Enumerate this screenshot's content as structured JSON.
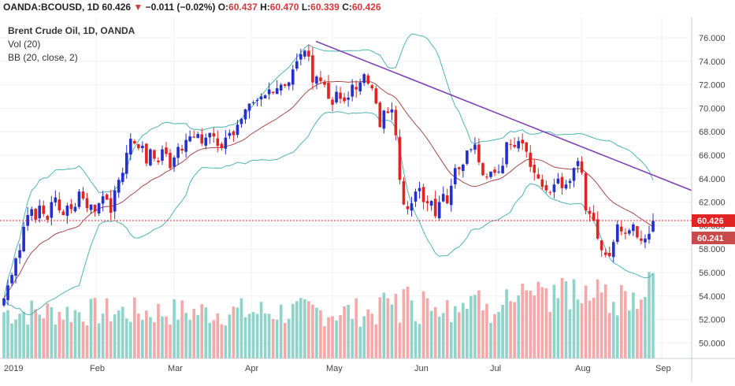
{
  "header": {
    "symbol": "OANDA:BCOUSD, 1D",
    "last": "60.426",
    "change_arrow": "▼",
    "change": "−0.011 (−0.02%)",
    "ohlc": [
      {
        "label": "O:",
        "value": "60.437"
      },
      {
        "label": "H:",
        "value": "60.470"
      },
      {
        "label": "L:",
        "value": "60.339"
      },
      {
        "label": "C:",
        "value": "60.426"
      }
    ]
  },
  "legend": {
    "title": "Brent Crude Oil, 1D, OANDA",
    "vol": "Vol (20)",
    "bb": "BB (20, close, 2)"
  },
  "colors": {
    "up": "#2430c9",
    "down": "#e02424",
    "trendline": "#7e3fb5",
    "bb_outer": "#4fb4b4",
    "bb_mid": "#a84848",
    "vol_up": "#8fd3cb",
    "vol_down": "#f4a8a8",
    "price_line": "#e02424",
    "bb_label": "#c94a4a"
  },
  "chart_data": {
    "type": "candlestick",
    "title": "Brent Crude Oil, 1D, OANDA",
    "x_axis_labels": [
      "2019",
      "Feb",
      "Mar",
      "Apr",
      "May",
      "Jun",
      "Jul",
      "Aug",
      "Sep"
    ],
    "y_ticks": [
      "76.000",
      "74.000",
      "72.000",
      "70.000",
      "68.000",
      "66.000",
      "64.000",
      "62.000",
      "60.000",
      "58.000",
      "56.000",
      "54.000",
      "52.000",
      "50.000"
    ],
    "y_tick_values": [
      76,
      74,
      72,
      70,
      68,
      66,
      64,
      62,
      60,
      58,
      56,
      54,
      52,
      50
    ],
    "ylim": [
      49,
      77.5
    ],
    "current_price_label": "60.426",
    "bb_value_label": "60.241",
    "close_series": [
      53.8,
      54.9,
      55.8,
      57.2,
      57.9,
      59.9,
      60.9,
      61.4,
      60.5,
      61.7,
      61.0,
      60.5,
      62.0,
      62.4,
      61.3,
      60.9,
      61.7,
      61.4,
      61.6,
      62.9,
      62.3,
      61.5,
      61.8,
      61.2,
      61.9,
      62.5,
      62.2,
      61.1,
      63.0,
      63.9,
      64.5,
      66.2,
      67.4,
      67.0,
      66.6,
      66.8,
      65.3,
      66.5,
      65.7,
      65.4,
      66.5,
      66.1,
      64.9,
      65.8,
      66.7,
      66.4,
      67.3,
      67.6,
      67.5,
      67.8,
      67.0,
      67.5,
      67.9,
      67.6,
      66.8,
      66.6,
      67.5,
      67.9,
      67.7,
      68.6,
      69.1,
      69.9,
      70.4,
      70.5,
      70.7,
      71.0,
      71.1,
      71.6,
      71.3,
      71.7,
      72.0,
      71.9,
      72.2,
      73.3,
      74.0,
      74.6,
      74.9,
      74.4,
      72.2,
      72.7,
      72.3,
      72.0,
      70.8,
      70.3,
      71.4,
      70.8,
      70.6,
      70.9,
      72.0,
      71.6,
      72.2,
      72.9,
      72.1,
      71.7,
      70.4,
      68.4,
      69.8,
      69.6,
      69.9,
      67.7,
      63.9,
      61.8,
      61.4,
      61.9,
      62.9,
      63.2,
      62.0,
      61.9,
      62.1,
      60.8,
      62.0,
      62.7,
      61.9,
      63.4,
      64.9,
      64.8,
      65.2,
      66.4,
      66.5,
      66.9,
      65.4,
      64.3,
      64.1,
      64.6,
      64.5,
      64.6,
      65.1,
      67.1,
      66.9,
      66.7,
      67.2,
      67.0,
      66.3,
      65.0,
      64.5,
      64.0,
      63.3,
      63.0,
      62.8,
      63.5,
      64.0,
      63.2,
      63.5,
      63.8,
      64.9,
      65.5,
      64.5,
      61.3,
      61.0,
      60.4,
      58.9,
      57.9,
      57.5,
      57.4,
      58.6,
      60.1,
      59.5,
      59.3,
      59.6,
      60.1,
      59.0,
      58.7,
      58.9,
      59.3,
      60.4
    ],
    "bollinger": {
      "period": 20,
      "source": "close",
      "stddev": 2
    },
    "volume_axis": "Vol (20)",
    "trendline": {
      "from": {
        "date": "Apr 25",
        "price": 75.7
      },
      "to": {
        "date": "Sep",
        "price": 63.0
      }
    },
    "grid": true
  }
}
